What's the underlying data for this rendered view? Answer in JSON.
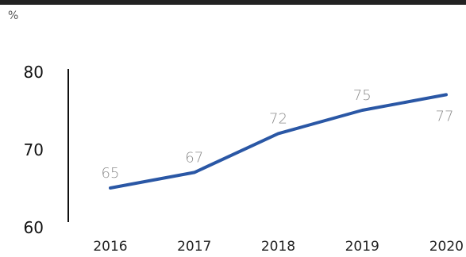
{
  "chart_data": {
    "type": "line",
    "unit_label": "%",
    "categories": [
      "2016",
      "2017",
      "2018",
      "2019",
      "2020"
    ],
    "series": [
      {
        "values": [
          65,
          67,
          72,
          75,
          77
        ]
      }
    ],
    "data_labels": [
      "65",
      "67",
      "72",
      "75",
      "77"
    ],
    "y_ticks": [
      60,
      70,
      80
    ],
    "ylim": [
      60,
      80
    ],
    "grid": false,
    "colors": {
      "line": "#2a57a5",
      "top_rule": "#222222",
      "axis": "#111111",
      "data_label": "#8a8a8a"
    }
  }
}
